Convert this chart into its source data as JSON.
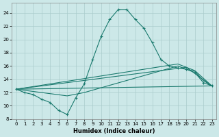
{
  "title": "",
  "xlabel": "Humidex (Indice chaleur)",
  "bg_color": "#cce8e8",
  "line_color": "#1a7a6e",
  "grid_color": "#aacccc",
  "xlim": [
    -0.5,
    23.5
  ],
  "ylim": [
    8,
    25.5
  ],
  "xticks": [
    0,
    1,
    2,
    3,
    4,
    5,
    6,
    7,
    8,
    9,
    10,
    11,
    12,
    13,
    14,
    15,
    16,
    17,
    18,
    19,
    20,
    21,
    22,
    23
  ],
  "yticks": [
    8,
    10,
    12,
    14,
    16,
    18,
    20,
    22,
    24
  ],
  "line1_x": [
    0,
    1,
    2,
    3,
    4,
    5,
    6,
    7,
    8,
    9,
    10,
    11,
    12,
    13,
    14,
    15,
    16,
    17,
    18,
    19,
    20,
    21,
    22,
    23
  ],
  "line1_y": [
    12.5,
    12.0,
    11.7,
    11.0,
    10.5,
    9.3,
    8.7,
    11.2,
    13.3,
    17.0,
    20.5,
    23.0,
    24.5,
    24.5,
    23.0,
    21.7,
    19.5,
    17.0,
    16.0,
    15.7,
    15.5,
    15.0,
    13.5,
    13.0
  ],
  "line2_x": [
    0,
    23
  ],
  "line2_y": [
    12.5,
    13.0
  ],
  "line3_x": [
    0,
    20,
    23
  ],
  "line3_y": [
    12.5,
    15.8,
    13.0
  ],
  "line4_x": [
    0,
    19,
    21,
    23
  ],
  "line4_y": [
    12.5,
    16.3,
    15.3,
    13.0
  ],
  "line5_x": [
    0,
    3,
    6,
    8,
    19,
    20,
    21,
    22,
    23
  ],
  "line5_y": [
    12.5,
    12.0,
    11.5,
    12.0,
    16.0,
    15.5,
    15.2,
    13.8,
    13.0
  ]
}
